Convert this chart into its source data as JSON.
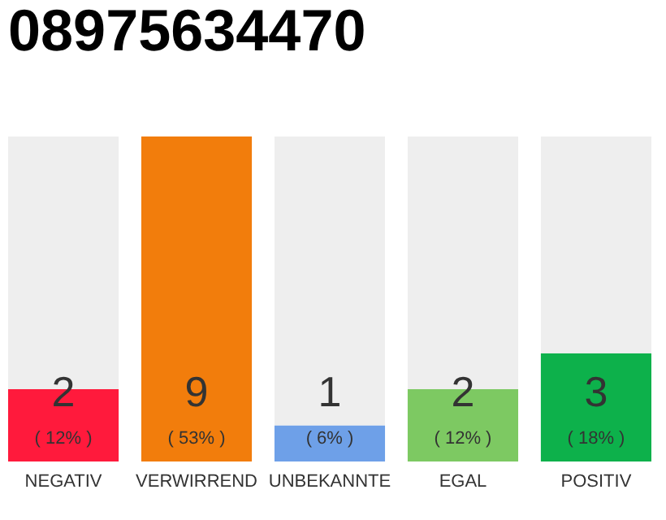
{
  "chart_data": {
    "type": "bar",
    "title": "08975634470",
    "categories": [
      "NEGATIV",
      "VERWIRREND",
      "UNBEKANNTE",
      "EGAL",
      "POSITIV"
    ],
    "stacked": true,
    "grid": false,
    "series": [
      {
        "colors": [
          "#ff1a3c",
          "#f27d0c",
          "#6ea0e8",
          "#7dc962",
          "#0db14b"
        ],
        "values": [
          2,
          9,
          1,
          2,
          3
        ],
        "value_labels": [
          "2",
          "9",
          "1",
          "2",
          "3"
        ]
      },
      {
        "color": "#eeeeee",
        "values": [
          7,
          0,
          8,
          7,
          6
        ]
      }
    ],
    "annotations": [
      "( 12% )",
      "( 53% )",
      "( 6% )",
      "( 12% )",
      "( 18% )"
    ]
  }
}
